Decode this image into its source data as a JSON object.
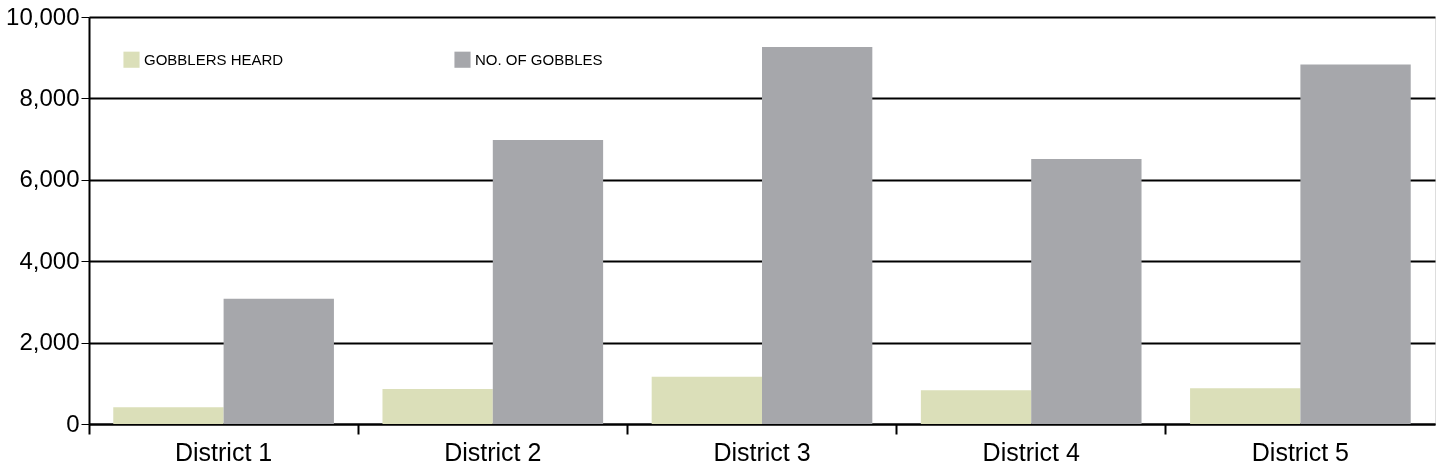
{
  "chart_data": {
    "type": "bar",
    "categories": [
      "District 1",
      "District 2",
      "District 3",
      "District 4",
      "District 5"
    ],
    "series": [
      {
        "name": "GOBBLERS HEARD",
        "color": "#dbdfb9",
        "values": [
          410,
          860,
          1160,
          830,
          880
        ]
      },
      {
        "name": "NO. OF GOBBLES",
        "color": "#a6a7ab",
        "values": [
          3080,
          6980,
          9260,
          6510,
          8830
        ]
      }
    ],
    "ylim": [
      0,
      10000
    ],
    "yticks": [
      0,
      {
        "value": 2000,
        "label": "2,000"
      },
      {
        "value": 4000,
        "label": "4,000"
      },
      {
        "value": 6000,
        "label": "6,000"
      },
      {
        "value": 8000,
        "label": "8,000"
      },
      {
        "value": 10000,
        "label": "10,000"
      }
    ],
    "grid": "y",
    "legend": "top left"
  }
}
